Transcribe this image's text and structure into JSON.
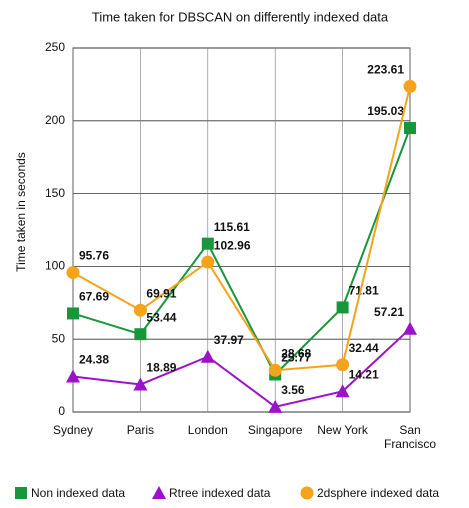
{
  "chart_data": {
    "type": "line",
    "title": "Time taken for DBSCAN on differently indexed data",
    "y_label": "Time  taken in  seconds",
    "categories": [
      "Sydney",
      "Paris",
      "London",
      "Singapore",
      "New York",
      "San Francisco"
    ],
    "series": [
      {
        "name": "Non indexed data",
        "color": "#17963a",
        "marker": "square",
        "values": [
          67.69,
          53.44,
          115.61,
          25.77,
          71.81,
          195.03
        ]
      },
      {
        "name": "Rtree indexed data",
        "color": "#9b12c9",
        "marker": "triangle",
        "values": [
          24.38,
          18.89,
          37.97,
          3.56,
          14.21,
          57.21
        ]
      },
      {
        "name": "2dsphere indexed data",
        "color": "#f5a31a",
        "marker": "circle",
        "values": [
          95.76,
          69.91,
          102.96,
          28.68,
          32.44,
          223.61
        ]
      }
    ],
    "ylim": [
      0,
      250
    ],
    "yticks": [
      0,
      50,
      100,
      150,
      200,
      250
    ],
    "grid": true
  }
}
